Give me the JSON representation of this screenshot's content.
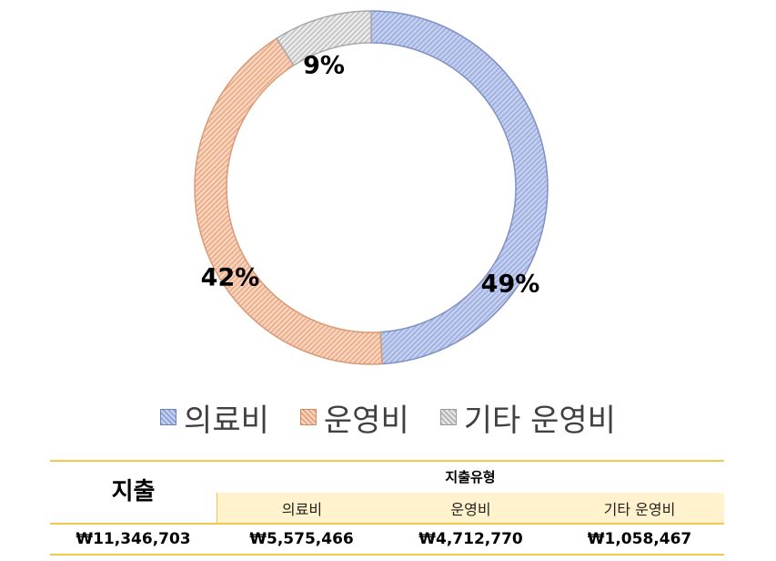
{
  "chart_data": {
    "type": "pie",
    "donut": true,
    "categories": [
      "의료비",
      "운영비",
      "기타 운영비"
    ],
    "values": [
      49,
      42,
      9
    ],
    "data_labels": [
      "49%",
      "42%",
      "9%"
    ],
    "legend": "bottom",
    "colors": [
      "#b4c0e6",
      "#f4c3a6",
      "#dcdcdc"
    ]
  },
  "table": {
    "header_main": "지출",
    "header_group": "지출유형",
    "sub_headers": [
      "의료비",
      "운영비",
      "기타 운영비"
    ],
    "total": "₩11,346,703",
    "values": [
      "₩5,575,466",
      "₩4,712,770",
      "₩1,058,467"
    ]
  }
}
